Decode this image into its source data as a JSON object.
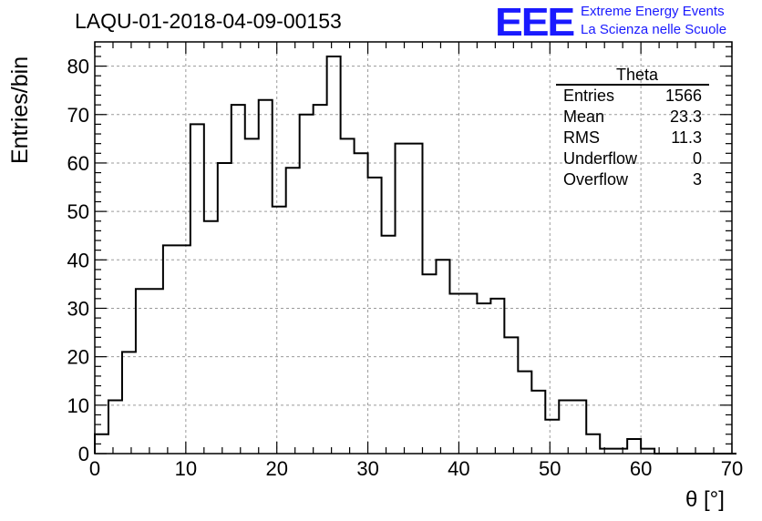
{
  "title": "LAQU-01-2018-04-09-00153",
  "logo": {
    "mark": "EEE",
    "line1": "Extreme Energy Events",
    "line2": "La Scienza nelle Scuole",
    "color": "#1a1aff"
  },
  "stats": {
    "title": "Theta",
    "rows": [
      {
        "label": "Entries",
        "value": "1566"
      },
      {
        "label": "Mean",
        "value": "23.3"
      },
      {
        "label": "RMS",
        "value": "11.3"
      },
      {
        "label": "Underflow",
        "value": "0"
      },
      {
        "label": "Overflow",
        "value": "3"
      }
    ]
  },
  "chart_data": {
    "type": "bar",
    "style": "step-histogram",
    "xlabel": "θ [°]",
    "ylabel": "Entries/bin",
    "xlim": [
      0,
      70
    ],
    "ylim": [
      0,
      85
    ],
    "grid": true,
    "legend_position": "top-right",
    "bin_width": 1.5,
    "bin_start": 0,
    "values": [
      4,
      11,
      21,
      34,
      34,
      43,
      43,
      68,
      48,
      60,
      72,
      65,
      73,
      51,
      59,
      70,
      72,
      82,
      65,
      62,
      57,
      45,
      64,
      64,
      37,
      40,
      33,
      33,
      31,
      32,
      24,
      17,
      13,
      7,
      11,
      11,
      4,
      1,
      1,
      3,
      1,
      0,
      0,
      0,
      0,
      0,
      0
    ],
    "x_ticks": [
      0,
      10,
      20,
      30,
      40,
      50,
      60,
      70
    ],
    "y_ticks": [
      0,
      10,
      20,
      30,
      40,
      50,
      60,
      70,
      80
    ]
  }
}
